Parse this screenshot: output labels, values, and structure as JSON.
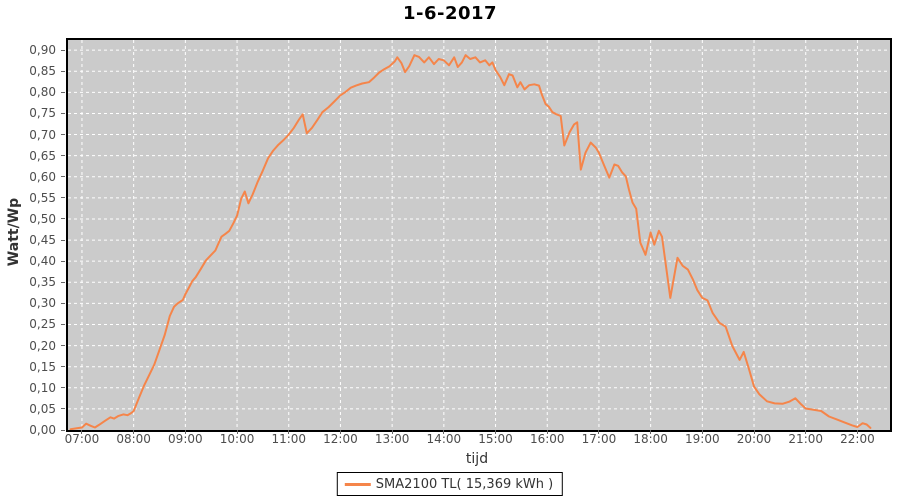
{
  "chart": {
    "title": "1-6-2017",
    "x_axis_label": "tijd",
    "y_axis_label": "Watt/Wp",
    "legend_label": "SMA2100 TL( 15,369 kWh )"
  },
  "colors": {
    "series": "#f5854a",
    "plot_background": "#cbcbcb",
    "grid": "#ffffff",
    "tick_text": "#4d4d4d",
    "axis_border": "#000000"
  },
  "chart_data": {
    "type": "line",
    "title": "1-6-2017",
    "xlabel": "tijd",
    "ylabel": "Watt/Wp",
    "legend_position": "bottom",
    "grid": true,
    "xlim_hours": [
      6.73,
      22.63
    ],
    "ylim": [
      0,
      0.924
    ],
    "x_ticks": [
      {
        "label": "07:00",
        "hour": 7
      },
      {
        "label": "08:00",
        "hour": 8
      },
      {
        "label": "09:00",
        "hour": 9
      },
      {
        "label": "10:00",
        "hour": 10
      },
      {
        "label": "11:00",
        "hour": 11
      },
      {
        "label": "12:00",
        "hour": 12
      },
      {
        "label": "13:00",
        "hour": 13
      },
      {
        "label": "14:00",
        "hour": 14
      },
      {
        "label": "15:00",
        "hour": 15
      },
      {
        "label": "16:00",
        "hour": 16
      },
      {
        "label": "17:00",
        "hour": 17
      },
      {
        "label": "18:00",
        "hour": 18
      },
      {
        "label": "19:00",
        "hour": 19
      },
      {
        "label": "20:00",
        "hour": 20
      },
      {
        "label": "21:00",
        "hour": 21
      },
      {
        "label": "22:00",
        "hour": 22
      }
    ],
    "y_ticks": [
      {
        "label": "0,00",
        "value": 0.0
      },
      {
        "label": "0,05",
        "value": 0.05
      },
      {
        "label": "0,10",
        "value": 0.1
      },
      {
        "label": "0,15",
        "value": 0.15
      },
      {
        "label": "0,20",
        "value": 0.2
      },
      {
        "label": "0,25",
        "value": 0.25
      },
      {
        "label": "0,30",
        "value": 0.3
      },
      {
        "label": "0,35",
        "value": 0.35
      },
      {
        "label": "0,40",
        "value": 0.4
      },
      {
        "label": "0,45",
        "value": 0.45
      },
      {
        "label": "0,50",
        "value": 0.5
      },
      {
        "label": "0,55",
        "value": 0.55
      },
      {
        "label": "0,60",
        "value": 0.6
      },
      {
        "label": "0,65",
        "value": 0.65
      },
      {
        "label": "0,70",
        "value": 0.7
      },
      {
        "label": "0,75",
        "value": 0.75
      },
      {
        "label": "0,80",
        "value": 0.8
      },
      {
        "label": "0,85",
        "value": 0.85
      },
      {
        "label": "0,90",
        "value": 0.9
      }
    ],
    "series": [
      {
        "name": "SMA2100 TL( 15,369 kWh )",
        "color": "#f5854a",
        "points": [
          [
            6.78,
            0.002
          ],
          [
            6.9,
            0.004
          ],
          [
            7.0,
            0.006
          ],
          [
            7.08,
            0.015
          ],
          [
            7.17,
            0.01
          ],
          [
            7.25,
            0.006
          ],
          [
            7.33,
            0.012
          ],
          [
            7.45,
            0.022
          ],
          [
            7.55,
            0.03
          ],
          [
            7.62,
            0.027
          ],
          [
            7.7,
            0.033
          ],
          [
            7.8,
            0.037
          ],
          [
            7.88,
            0.035
          ],
          [
            7.95,
            0.04
          ],
          [
            8.0,
            0.045
          ],
          [
            8.1,
            0.075
          ],
          [
            8.2,
            0.105
          ],
          [
            8.3,
            0.13
          ],
          [
            8.4,
            0.155
          ],
          [
            8.5,
            0.19
          ],
          [
            8.6,
            0.225
          ],
          [
            8.7,
            0.27
          ],
          [
            8.78,
            0.292
          ],
          [
            8.85,
            0.3
          ],
          [
            8.95,
            0.308
          ],
          [
            9.0,
            0.322
          ],
          [
            9.08,
            0.34
          ],
          [
            9.13,
            0.352
          ],
          [
            9.2,
            0.362
          ],
          [
            9.3,
            0.382
          ],
          [
            9.4,
            0.402
          ],
          [
            9.5,
            0.415
          ],
          [
            9.58,
            0.425
          ],
          [
            9.65,
            0.445
          ],
          [
            9.7,
            0.458
          ],
          [
            9.78,
            0.465
          ],
          [
            9.85,
            0.472
          ],
          [
            9.93,
            0.49
          ],
          [
            10.0,
            0.508
          ],
          [
            10.08,
            0.548
          ],
          [
            10.15,
            0.565
          ],
          [
            10.22,
            0.537
          ],
          [
            10.3,
            0.558
          ],
          [
            10.4,
            0.588
          ],
          [
            10.5,
            0.615
          ],
          [
            10.6,
            0.644
          ],
          [
            10.7,
            0.662
          ],
          [
            10.8,
            0.676
          ],
          [
            10.9,
            0.687
          ],
          [
            11.0,
            0.7
          ],
          [
            11.1,
            0.716
          ],
          [
            11.2,
            0.736
          ],
          [
            11.27,
            0.748
          ],
          [
            11.35,
            0.703
          ],
          [
            11.45,
            0.716
          ],
          [
            11.55,
            0.734
          ],
          [
            11.65,
            0.753
          ],
          [
            11.77,
            0.765
          ],
          [
            11.88,
            0.778
          ],
          [
            12.0,
            0.793
          ],
          [
            12.1,
            0.801
          ],
          [
            12.2,
            0.811
          ],
          [
            12.3,
            0.816
          ],
          [
            12.42,
            0.821
          ],
          [
            12.55,
            0.824
          ],
          [
            12.65,
            0.835
          ],
          [
            12.75,
            0.847
          ],
          [
            12.85,
            0.855
          ],
          [
            12.95,
            0.862
          ],
          [
            13.05,
            0.873
          ],
          [
            13.1,
            0.883
          ],
          [
            13.18,
            0.869
          ],
          [
            13.25,
            0.848
          ],
          [
            13.33,
            0.862
          ],
          [
            13.43,
            0.888
          ],
          [
            13.52,
            0.884
          ],
          [
            13.62,
            0.871
          ],
          [
            13.71,
            0.883
          ],
          [
            13.81,
            0.867
          ],
          [
            13.9,
            0.879
          ],
          [
            14.0,
            0.876
          ],
          [
            14.1,
            0.864
          ],
          [
            14.2,
            0.883
          ],
          [
            14.27,
            0.86
          ],
          [
            14.35,
            0.871
          ],
          [
            14.42,
            0.888
          ],
          [
            14.51,
            0.879
          ],
          [
            14.61,
            0.883
          ],
          [
            14.7,
            0.871
          ],
          [
            14.8,
            0.876
          ],
          [
            14.88,
            0.864
          ],
          [
            14.94,
            0.871
          ],
          [
            15.0,
            0.853
          ],
          [
            15.09,
            0.836
          ],
          [
            15.17,
            0.817
          ],
          [
            15.26,
            0.843
          ],
          [
            15.33,
            0.84
          ],
          [
            15.42,
            0.812
          ],
          [
            15.48,
            0.824
          ],
          [
            15.56,
            0.807
          ],
          [
            15.65,
            0.817
          ],
          [
            15.75,
            0.819
          ],
          [
            15.84,
            0.816
          ],
          [
            15.9,
            0.793
          ],
          [
            15.97,
            0.772
          ],
          [
            16.03,
            0.766
          ],
          [
            16.1,
            0.753
          ],
          [
            16.18,
            0.748
          ],
          [
            16.26,
            0.744
          ],
          [
            16.33,
            0.674
          ],
          [
            16.43,
            0.705
          ],
          [
            16.52,
            0.724
          ],
          [
            16.58,
            0.729
          ],
          [
            16.65,
            0.617
          ],
          [
            16.74,
            0.657
          ],
          [
            16.84,
            0.681
          ],
          [
            16.94,
            0.669
          ],
          [
            17.0,
            0.657
          ],
          [
            17.1,
            0.627
          ],
          [
            17.2,
            0.598
          ],
          [
            17.3,
            0.629
          ],
          [
            17.37,
            0.626
          ],
          [
            17.45,
            0.61
          ],
          [
            17.52,
            0.601
          ],
          [
            17.58,
            0.57
          ],
          [
            17.65,
            0.539
          ],
          [
            17.72,
            0.524
          ],
          [
            17.8,
            0.444
          ],
          [
            17.9,
            0.415
          ],
          [
            18.0,
            0.468
          ],
          [
            18.07,
            0.439
          ],
          [
            18.16,
            0.472
          ],
          [
            18.22,
            0.458
          ],
          [
            18.28,
            0.404
          ],
          [
            18.38,
            0.313
          ],
          [
            18.48,
            0.382
          ],
          [
            18.52,
            0.408
          ],
          [
            18.62,
            0.389
          ],
          [
            18.72,
            0.38
          ],
          [
            18.82,
            0.356
          ],
          [
            18.9,
            0.332
          ],
          [
            19.0,
            0.313
          ],
          [
            19.1,
            0.307
          ],
          [
            19.2,
            0.277
          ],
          [
            19.33,
            0.254
          ],
          [
            19.45,
            0.245
          ],
          [
            19.58,
            0.199
          ],
          [
            19.72,
            0.166
          ],
          [
            19.8,
            0.185
          ],
          [
            19.9,
            0.145
          ],
          [
            20.0,
            0.103
          ],
          [
            20.1,
            0.085
          ],
          [
            20.25,
            0.068
          ],
          [
            20.4,
            0.063
          ],
          [
            20.55,
            0.062
          ],
          [
            20.68,
            0.067
          ],
          [
            20.8,
            0.075
          ],
          [
            20.9,
            0.062
          ],
          [
            21.0,
            0.051
          ],
          [
            21.15,
            0.048
          ],
          [
            21.3,
            0.045
          ],
          [
            21.45,
            0.032
          ],
          [
            21.6,
            0.025
          ],
          [
            21.75,
            0.018
          ],
          [
            21.9,
            0.011
          ],
          [
            22.0,
            0.007
          ],
          [
            22.1,
            0.016
          ],
          [
            22.18,
            0.013
          ],
          [
            22.25,
            0.005
          ]
        ]
      }
    ]
  }
}
